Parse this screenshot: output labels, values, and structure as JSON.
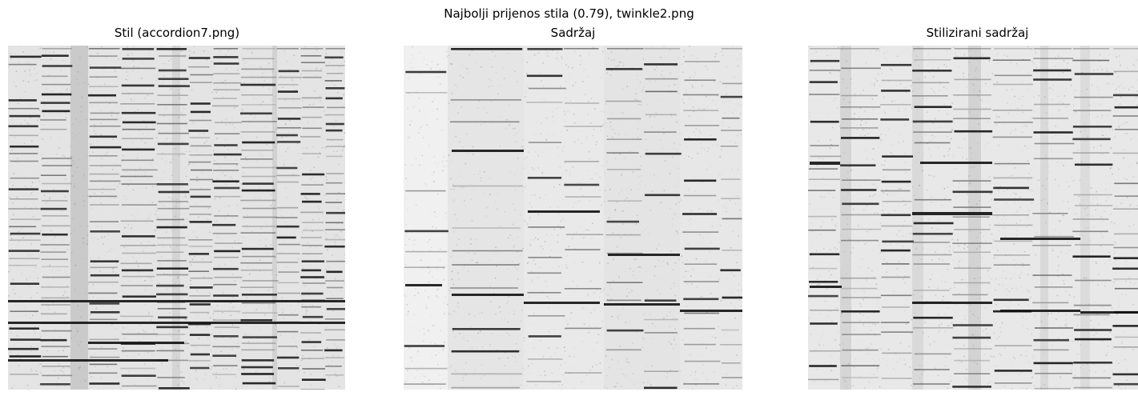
{
  "figure": {
    "suptitle": "Najbolji prijenos stila (0.79), twinkle2.png",
    "panels": [
      {
        "title": "Stil (accordion7.png)"
      },
      {
        "title": "Sadržaj"
      },
      {
        "title": "Stilizirani sadržaj"
      }
    ]
  }
}
